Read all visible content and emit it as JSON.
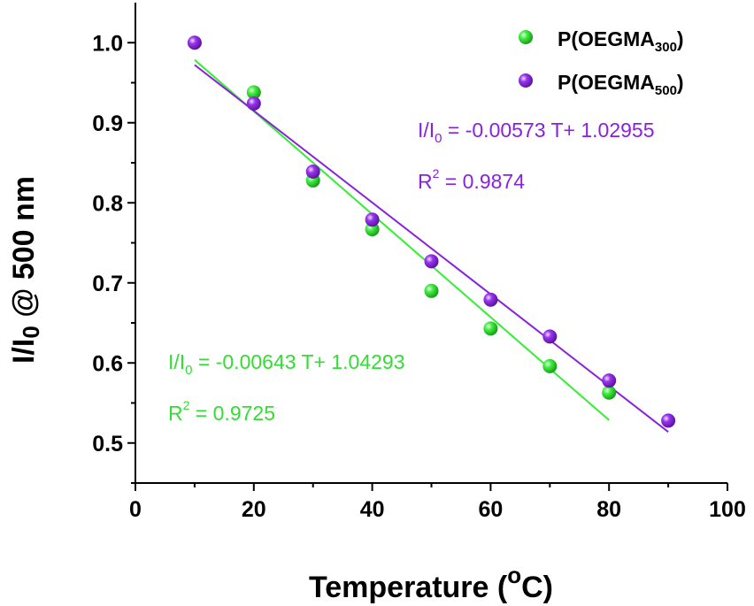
{
  "chart_data": {
    "type": "scatter",
    "xlabel": "Temperature (",
    "xlabel_sup": "o",
    "xlabel_end": "C)",
    "ylabel_main": "I/I",
    "ylabel_sub": "0",
    "ylabel_end": " @ 500 nm",
    "xlim": [
      0,
      100
    ],
    "ylim": [
      0.45,
      1.05
    ],
    "xticks": [
      "0",
      "20",
      "40",
      "60",
      "80",
      "100"
    ],
    "yticks": [
      "0.5",
      "0.6",
      "0.7",
      "0.8",
      "0.9",
      "1.0"
    ],
    "series": [
      {
        "name_main": "P(OEGMA",
        "name_sub": "300",
        "name_end": ")",
        "color": "#22dd22",
        "line_color": "#33ee33",
        "x": [
          20,
          30,
          40,
          50,
          60,
          70,
          80
        ],
        "y": [
          0.938,
          0.828,
          0.767,
          0.69,
          0.643,
          0.596,
          0.563
        ],
        "fit": {
          "slope": -0.00643,
          "intercept": 1.04293,
          "x_range": [
            10,
            80
          ],
          "eq_main": "I/I",
          "eq_sub": "0",
          "eq_end": " = -0.00643 T+ 1.04293",
          "r2_main": "R",
          "r2_sup": "2",
          "r2_end": " = 0.9725"
        }
      },
      {
        "name_main": "P(OEGMA",
        "name_sub": "500",
        "name_end": ")",
        "color": "#8822dd",
        "line_color": "#8822dd",
        "x": [
          10,
          20,
          30,
          40,
          50,
          60,
          70,
          80,
          90
        ],
        "y": [
          1.0,
          0.924,
          0.839,
          0.779,
          0.727,
          0.679,
          0.633,
          0.578,
          0.528
        ],
        "fit": {
          "slope": -0.00573,
          "intercept": 1.02955,
          "x_range": [
            10,
            90
          ],
          "eq_main": "I/I",
          "eq_sub": "0",
          "eq_end": " = -0.00573 T+ 1.02955",
          "r2_main": "R",
          "r2_sup": "2",
          "r2_end": " = 0.9874"
        }
      }
    ],
    "legend": "top-right",
    "grid": false
  }
}
